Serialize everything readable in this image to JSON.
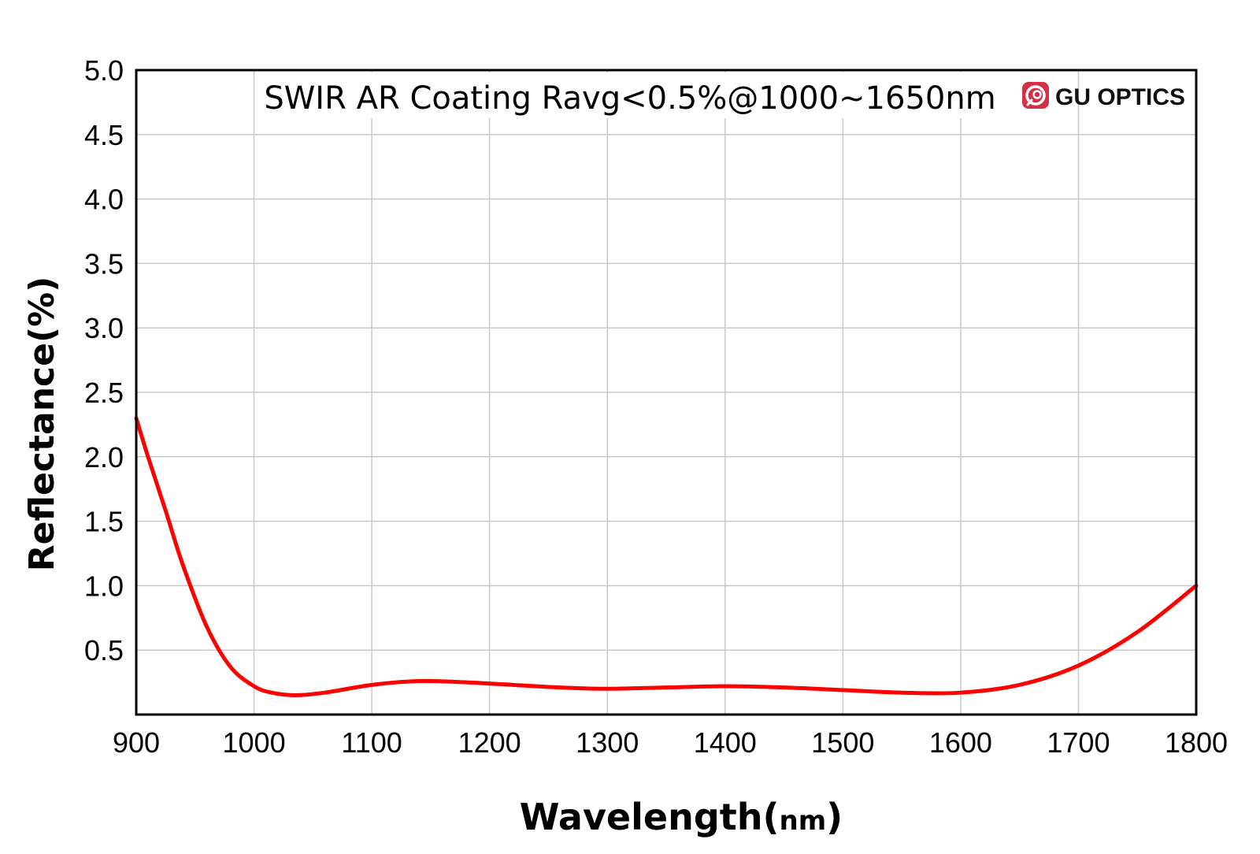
{
  "chart_data": {
    "type": "line",
    "title": "SWIR AR Coating Ravg<0.5%@1000~1650nm",
    "brand": "GU OPTICS",
    "brand_icon": "lens-logo-icon",
    "xlabel_main": "Wavelength(",
    "xlabel_unit": "nm",
    "xlabel_close": ")",
    "ylabel": "Reflectance(%)",
    "xlim": [
      900,
      1800
    ],
    "ylim": [
      0,
      5.0
    ],
    "x_ticks": [
      900,
      1000,
      1100,
      1200,
      1300,
      1400,
      1500,
      1600,
      1700,
      1800
    ],
    "x_tick_labels": [
      "900",
      "1000",
      "1100",
      "1200",
      "1300",
      "1400",
      "1500",
      "1600",
      "1700",
      "1800"
    ],
    "y_ticks": [
      0.5,
      1.0,
      1.5,
      2.0,
      2.5,
      3.0,
      3.5,
      4.0,
      4.5,
      5.0
    ],
    "y_tick_labels": [
      "0.5",
      "1.0",
      "1.5",
      "2.0",
      "2.5",
      "3.0",
      "3.5",
      "4.0",
      "4.5",
      "5.0"
    ],
    "grid": true,
    "series": [
      {
        "color": "#ff0000",
        "x": [
          900,
          910,
          925,
          940,
          960,
          980,
          1000,
          1015,
          1035,
          1060,
          1100,
          1140,
          1180,
          1220,
          1260,
          1300,
          1350,
          1400,
          1450,
          1500,
          1550,
          1600,
          1650,
          1700,
          1750,
          1800
        ],
        "y": [
          2.3,
          2.0,
          1.58,
          1.15,
          0.68,
          0.37,
          0.22,
          0.17,
          0.15,
          0.17,
          0.23,
          0.26,
          0.25,
          0.23,
          0.21,
          0.2,
          0.21,
          0.22,
          0.21,
          0.19,
          0.17,
          0.17,
          0.23,
          0.38,
          0.64,
          1.0
        ]
      }
    ]
  },
  "colors": {
    "curve": "#ff0000",
    "grid": "#c8c8c8",
    "frame": "#000000",
    "logo": "#d32f45"
  }
}
